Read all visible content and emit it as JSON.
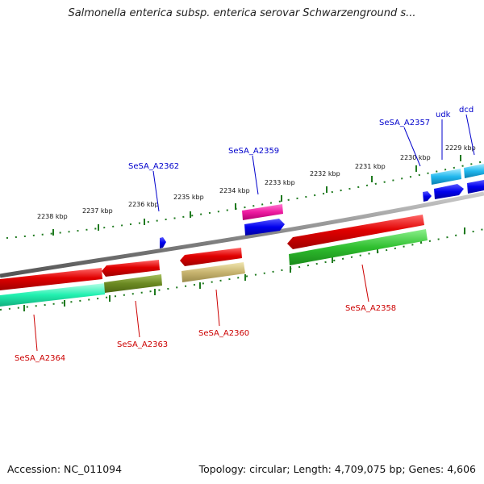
{
  "title": "Salmonella enterica subsp. enterica serovar Schwarzenground s...",
  "footer": {
    "accession": "Accession: NC_011094",
    "summary": "Topology: circular; Length: 4,709,075 bp; Genes: 4,606"
  },
  "colors": {
    "backbone": "#8a8a8a",
    "forward_label": "#0000cc",
    "reverse_label": "#cc0000",
    "ticks": "#1f7a1f"
  },
  "scale_ticks": [
    "2238 kbp",
    "2237 kbp",
    "2236 kbp",
    "2235 kbp",
    "2234 kbp",
    "2233 kbp",
    "2232 kbp",
    "2231 kbp",
    "2230 kbp",
    "2229 kbp"
  ],
  "forward_labels": [
    "SeSA_A2362",
    "SeSA_A2359",
    "SeSA_A2357",
    "udk",
    "dcd"
  ],
  "reverse_labels": [
    "SeSA_A2364",
    "SeSA_A2363",
    "SeSA_A2360",
    "SeSA_A2358"
  ]
}
